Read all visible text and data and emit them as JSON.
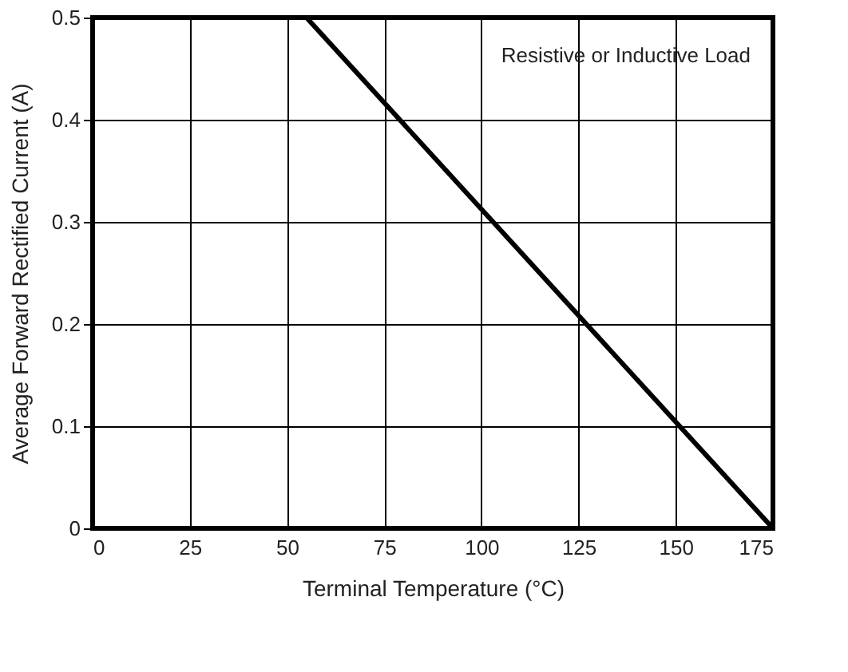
{
  "chart_data": {
    "type": "line",
    "xlabel": "Terminal Temperature (°C)",
    "ylabel": "Average Forward Rectified Current (A)",
    "x": [
      0,
      55,
      175
    ],
    "series": [
      {
        "color": "#000000",
        "values": [
          0.5,
          0.5,
          0
        ]
      }
    ],
    "xlim": [
      0,
      175
    ],
    "xticks": [
      0,
      25,
      50,
      75,
      100,
      125,
      150,
      175
    ],
    "ylim": [
      0,
      0.5
    ],
    "yticks": [
      0,
      0.1,
      0.2,
      0.3,
      0.4,
      0.5
    ],
    "grid": true,
    "legend": false,
    "marker": "none",
    "line_style": "solid",
    "annotations": [
      "Resistive or Inductive Load"
    ]
  }
}
